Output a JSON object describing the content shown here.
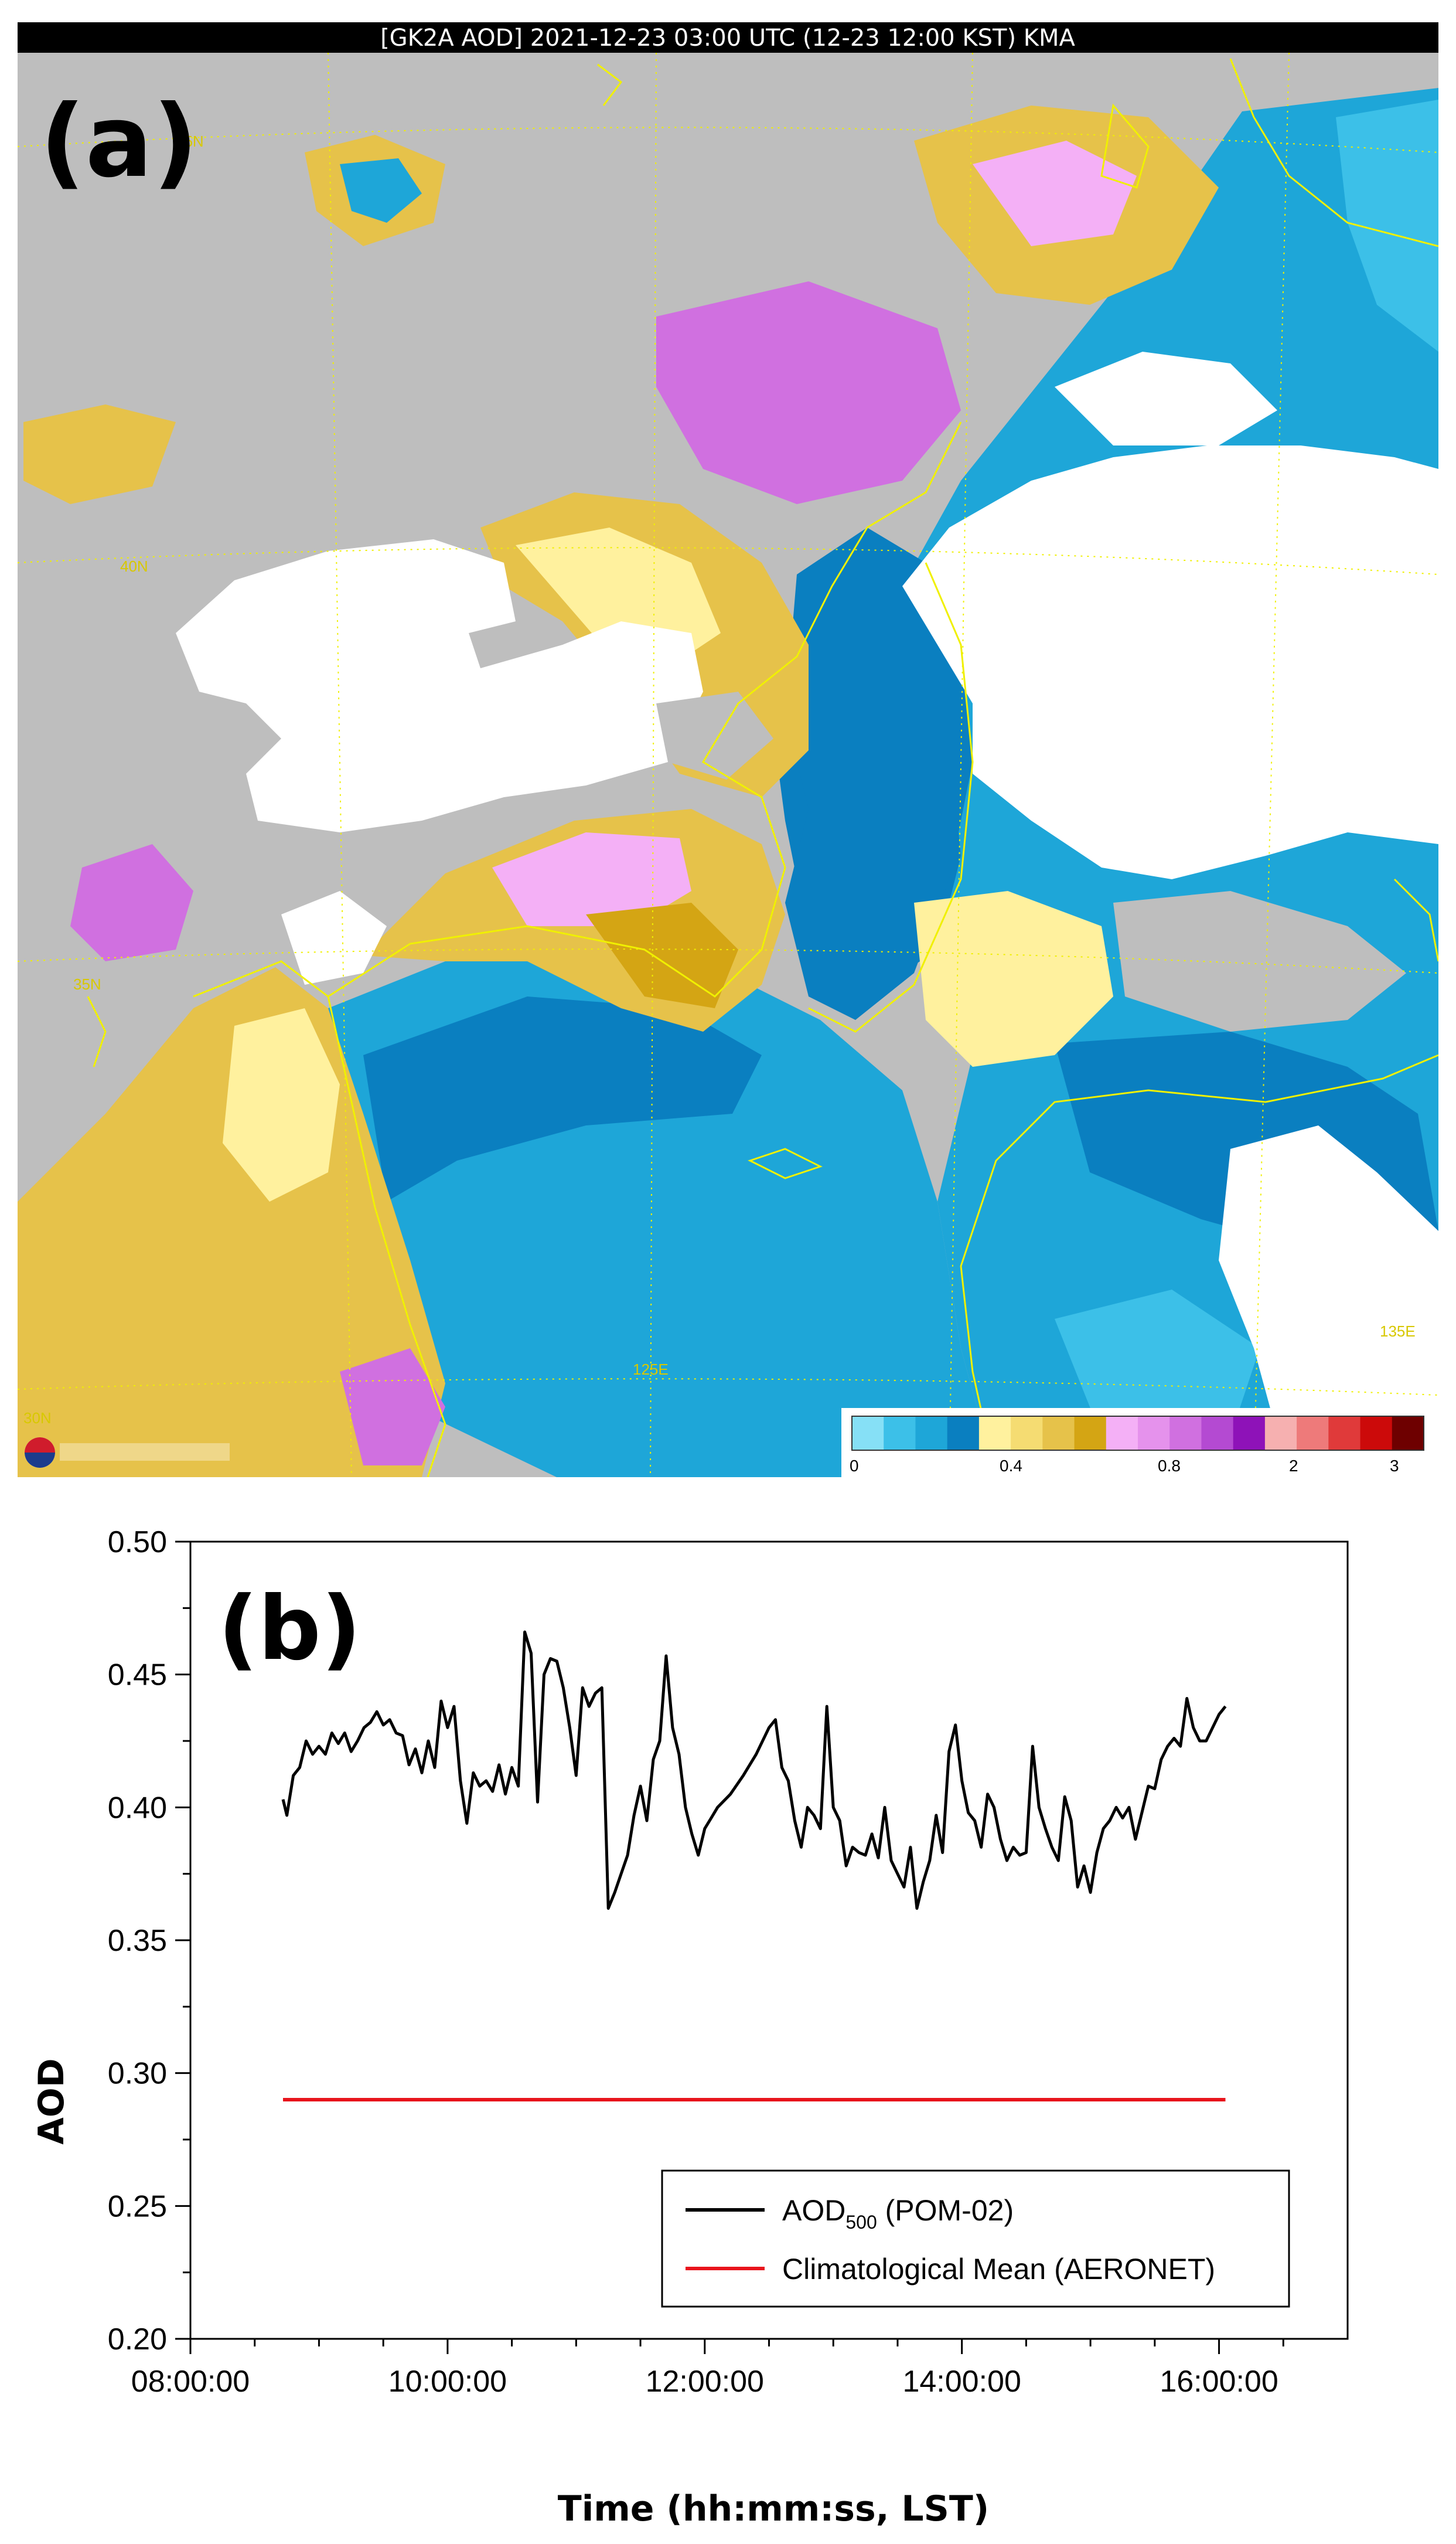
{
  "chart_data": [
    {
      "type": "heatmap",
      "panel_label": "(a)",
      "title": "[GK2A AOD] 2021-12-23 03:00 UTC (12-23 12:00 KST) KMA",
      "grid_labels": [
        "45N",
        "40N",
        "35N",
        "30N",
        "125E",
        "135E"
      ],
      "colorbar": {
        "tick_labels": [
          "0",
          "0.4",
          "0.8",
          "2",
          "3"
        ],
        "colors": [
          "#86e0f6",
          "#3cc0e8",
          "#1ea6d8",
          "#0a7fc0",
          "#fff19e",
          "#f5dc72",
          "#e6c24a",
          "#d4a514",
          "#f4b0f6",
          "#e592ec",
          "#d070e0",
          "#b44ad2",
          "#8e12b8",
          "#f6b0b0",
          "#ee7a7a",
          "#e03a3a",
          "#cc0a0a",
          "#6e0000"
        ]
      },
      "colors": {
        "gray": "#bebebe",
        "white": "#ffffff",
        "blue_dark": "#0a7fc0",
        "blue_mid": "#1ea6d8",
        "blue_light": "#3cc0e8",
        "yellow_light": "#fff19e",
        "yellow_mid": "#e6c24a",
        "yellow_dark": "#d4a514",
        "pink": "#f4b0f6",
        "magenta": "#d070e0",
        "coast": "#f0f000"
      }
    },
    {
      "type": "line",
      "panel_label": "(b)",
      "xlabel": "Time (hh:mm:ss, LST)",
      "ylabel": "AOD",
      "xticks": [
        "08:00:00",
        "10:00:00",
        "12:00:00",
        "14:00:00",
        "16:00:00"
      ],
      "xlim": [
        8.0,
        17.0
      ],
      "yticks": [
        "0.20",
        "0.25",
        "0.30",
        "0.35",
        "0.40",
        "0.45",
        "0.50"
      ],
      "ylim": [
        0.2,
        0.5
      ],
      "legend": {
        "placement": "lower-right"
      },
      "series": [
        {
          "name_main": "AOD",
          "name_sub": "500",
          "name_rest": " (POM-02)",
          "color": "#000000",
          "x": [
            8.72,
            8.75,
            8.8,
            8.85,
            8.9,
            8.95,
            9.0,
            9.05,
            9.1,
            9.15,
            9.2,
            9.25,
            9.3,
            9.35,
            9.4,
            9.45,
            9.5,
            9.55,
            9.6,
            9.65,
            9.7,
            9.75,
            9.8,
            9.85,
            9.9,
            9.95,
            10.0,
            10.05,
            10.1,
            10.15,
            10.2,
            10.25,
            10.3,
            10.35,
            10.4,
            10.45,
            10.5,
            10.55,
            10.6,
            10.65,
            10.7,
            10.75,
            10.8,
            10.85,
            10.9,
            10.95,
            11.0,
            11.05,
            11.1,
            11.15,
            11.2,
            11.25,
            11.3,
            11.35,
            11.4,
            11.45,
            11.5,
            11.55,
            11.6,
            11.65,
            11.7,
            11.75,
            11.8,
            11.85,
            11.9,
            11.95,
            12.0,
            12.05,
            12.1,
            12.2,
            12.3,
            12.4,
            12.5,
            12.55,
            12.6,
            12.65,
            12.7,
            12.75,
            12.8,
            12.85,
            12.9,
            12.95,
            13.0,
            13.05,
            13.1,
            13.15,
            13.2,
            13.25,
            13.3,
            13.35,
            13.4,
            13.45,
            13.5,
            13.55,
            13.6,
            13.65,
            13.7,
            13.75,
            13.8,
            13.85,
            13.9,
            13.95,
            14.0,
            14.05,
            14.1,
            14.15,
            14.2,
            14.25,
            14.3,
            14.35,
            14.4,
            14.45,
            14.5,
            14.55,
            14.6,
            14.65,
            14.7,
            14.75,
            14.8,
            14.85,
            14.9,
            14.95,
            15.0,
            15.05,
            15.1,
            15.15,
            15.2,
            15.25,
            15.3,
            15.35,
            15.4,
            15.45,
            15.5,
            15.55,
            15.6,
            15.65,
            15.7,
            15.75,
            15.8,
            15.85,
            15.9,
            15.95,
            16.0,
            16.05
          ],
          "y": [
            0.403,
            0.397,
            0.412,
            0.415,
            0.425,
            0.42,
            0.423,
            0.42,
            0.428,
            0.424,
            0.428,
            0.421,
            0.425,
            0.43,
            0.432,
            0.436,
            0.431,
            0.433,
            0.428,
            0.427,
            0.416,
            0.422,
            0.413,
            0.425,
            0.415,
            0.44,
            0.43,
            0.438,
            0.41,
            0.394,
            0.413,
            0.408,
            0.41,
            0.406,
            0.416,
            0.405,
            0.415,
            0.408,
            0.466,
            0.458,
            0.402,
            0.45,
            0.456,
            0.455,
            0.445,
            0.43,
            0.412,
            0.445,
            0.438,
            0.443,
            0.445,
            0.362,
            0.368,
            0.375,
            0.382,
            0.397,
            0.408,
            0.395,
            0.418,
            0.425,
            0.457,
            0.43,
            0.42,
            0.4,
            0.39,
            0.382,
            0.392,
            0.396,
            0.4,
            0.405,
            0.412,
            0.42,
            0.43,
            0.433,
            0.415,
            0.41,
            0.395,
            0.385,
            0.4,
            0.397,
            0.392,
            0.438,
            0.4,
            0.395,
            0.378,
            0.385,
            0.383,
            0.382,
            0.39,
            0.381,
            0.4,
            0.38,
            0.375,
            0.37,
            0.385,
            0.362,
            0.372,
            0.38,
            0.397,
            0.383,
            0.421,
            0.431,
            0.41,
            0.398,
            0.395,
            0.385,
            0.405,
            0.4,
            0.388,
            0.38,
            0.385,
            0.382,
            0.383,
            0.423,
            0.4,
            0.392,
            0.385,
            0.38,
            0.404,
            0.395,
            0.37,
            0.378,
            0.368,
            0.383,
            0.392,
            0.395,
            0.4,
            0.396,
            0.4,
            0.388,
            0.398,
            0.408,
            0.407,
            0.418,
            0.423,
            0.426,
            0.423,
            0.441,
            0.43,
            0.425,
            0.425,
            0.43,
            0.435,
            0.438
          ]
        },
        {
          "name": "Climatological Mean (AERONET)",
          "color": "#e8141c",
          "x": [
            8.72,
            16.05
          ],
          "y": [
            0.29,
            0.29
          ]
        }
      ]
    }
  ]
}
